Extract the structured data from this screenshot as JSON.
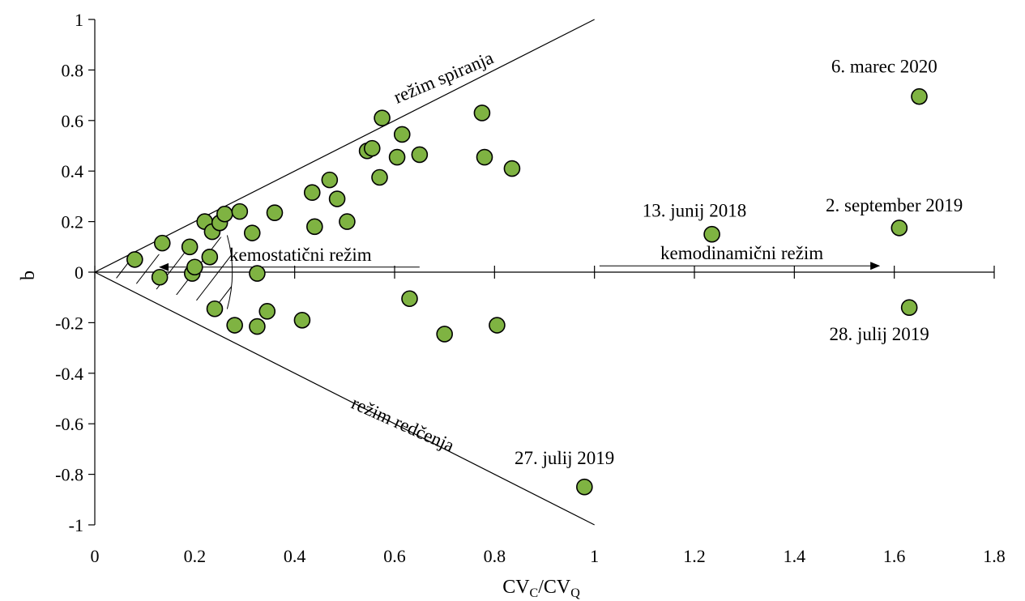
{
  "chart_data": {
    "type": "scatter",
    "xlabel": "CV",
    "xlabel_sub1": "C",
    "xlabel_mid": "/CV",
    "xlabel_sub2": "Q",
    "ylabel": "b",
    "xlim": [
      0,
      1.8
    ],
    "ylim": [
      -1,
      1
    ],
    "x_ticks": [
      0,
      0.2,
      0.4,
      0.6,
      0.8,
      1,
      1.2,
      1.4,
      1.6,
      1.8
    ],
    "x_tick_labels": [
      "0",
      "0.2",
      "0.4",
      "0.6",
      "0.8",
      "1",
      "1.2",
      "1.4",
      "1.6",
      "1.8"
    ],
    "y_ticks": [
      -1,
      -0.8,
      -0.6,
      -0.4,
      -0.2,
      0,
      0.2,
      0.4,
      0.6,
      0.8,
      1
    ],
    "y_tick_labels": [
      "-1",
      "-0.8",
      "-0.6",
      "-0.4",
      "-0.2",
      "0",
      "0.2",
      "0.4",
      "0.6",
      "0.8",
      "1"
    ],
    "grid": false,
    "marker_color": "#7fb342",
    "marker_edge": "#000000",
    "points": [
      {
        "x": 0.08,
        "y": 0.05
      },
      {
        "x": 0.13,
        "y": -0.02
      },
      {
        "x": 0.135,
        "y": 0.115
      },
      {
        "x": 0.19,
        "y": 0.1
      },
      {
        "x": 0.195,
        "y": -0.005
      },
      {
        "x": 0.2,
        "y": 0.02
      },
      {
        "x": 0.22,
        "y": 0.2
      },
      {
        "x": 0.23,
        "y": 0.06
      },
      {
        "x": 0.235,
        "y": 0.16
      },
      {
        "x": 0.25,
        "y": 0.195
      },
      {
        "x": 0.26,
        "y": 0.23
      },
      {
        "x": 0.29,
        "y": 0.24
      },
      {
        "x": 0.315,
        "y": 0.155
      },
      {
        "x": 0.325,
        "y": -0.005
      },
      {
        "x": 0.36,
        "y": 0.235
      },
      {
        "x": 0.24,
        "y": -0.145
      },
      {
        "x": 0.28,
        "y": -0.21
      },
      {
        "x": 0.325,
        "y": -0.215
      },
      {
        "x": 0.345,
        "y": -0.155
      },
      {
        "x": 0.415,
        "y": -0.19
      },
      {
        "x": 0.435,
        "y": 0.315
      },
      {
        "x": 0.44,
        "y": 0.18
      },
      {
        "x": 0.47,
        "y": 0.365
      },
      {
        "x": 0.485,
        "y": 0.29
      },
      {
        "x": 0.505,
        "y": 0.2
      },
      {
        "x": 0.545,
        "y": 0.48
      },
      {
        "x": 0.555,
        "y": 0.49
      },
      {
        "x": 0.57,
        "y": 0.375
      },
      {
        "x": 0.575,
        "y": 0.61
      },
      {
        "x": 0.605,
        "y": 0.455
      },
      {
        "x": 0.615,
        "y": 0.545
      },
      {
        "x": 0.65,
        "y": 0.465
      },
      {
        "x": 0.63,
        "y": -0.105
      },
      {
        "x": 0.7,
        "y": -0.245
      },
      {
        "x": 0.775,
        "y": 0.63
      },
      {
        "x": 0.78,
        "y": 0.455
      },
      {
        "x": 0.805,
        "y": -0.21
      },
      {
        "x": 0.835,
        "y": 0.41
      },
      {
        "x": 0.98,
        "y": -0.85
      },
      {
        "x": 1.235,
        "y": 0.15
      },
      {
        "x": 1.61,
        "y": 0.175
      },
      {
        "x": 1.63,
        "y": -0.14
      },
      {
        "x": 1.65,
        "y": 0.695
      }
    ],
    "annotations": [
      {
        "text": "6. marec 2020",
        "x": 1.58,
        "y": 0.79
      },
      {
        "text": "13. junij 2018",
        "x": 1.2,
        "y": 0.22
      },
      {
        "text": "2. september 2019",
        "x": 1.6,
        "y": 0.24
      },
      {
        "text": "28. julij 2019",
        "x": 1.57,
        "y": -0.27
      },
      {
        "text": "27. julij 2019",
        "x": 0.94,
        "y": -0.76
      }
    ],
    "regime_labels": {
      "flushing": "režim spiranja",
      "dilution": "režim redčenja",
      "chemostatic": "kemostatični režim",
      "chemodynamic": "kemodinamični režim"
    }
  }
}
